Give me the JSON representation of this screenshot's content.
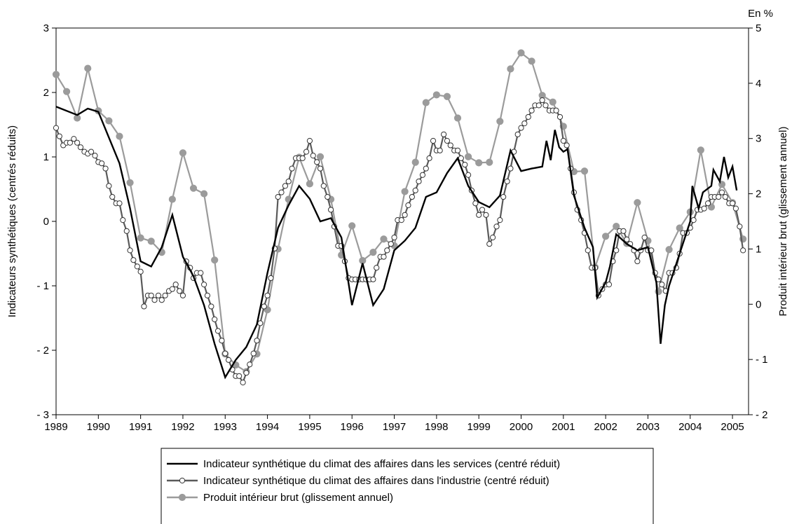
{
  "chart_data": {
    "type": "line",
    "unit_label": "En %",
    "y_label": "Indicateurs synthétiques (centrés réduits)",
    "y2_label": "Produit intérieur brut (glissement annuel)",
    "xlim": [
      1989,
      2005.38
    ],
    "xticks": [
      1989,
      1990,
      1991,
      1992,
      1993,
      1994,
      1995,
      1996,
      1997,
      1998,
      1999,
      2000,
      2001,
      2002,
      2003,
      2004,
      2005
    ],
    "ylim": [
      -3,
      3
    ],
    "yticks": [
      {
        "value": -3,
        "label": "- 3"
      },
      {
        "value": -2,
        "label": "- 2"
      },
      {
        "value": -1,
        "label": "- 1"
      },
      0,
      1,
      2,
      3
    ],
    "y2lim": [
      -2,
      5
    ],
    "y2ticks": [
      {
        "value": -2,
        "label": "- 2"
      },
      {
        "value": -1,
        "label": "- 1"
      },
      0,
      1,
      2,
      3,
      4,
      5
    ],
    "legend": "bottom",
    "series": [
      {
        "name": "Indicateur synthétique du climat des affaires dans les services (centré réduit)",
        "color": "#000000",
        "marker": "none",
        "x": [
          1989,
          1989.5,
          1989.75,
          1990,
          1990.25,
          1990.5,
          1990.75,
          1991,
          1991.25,
          1991.5,
          1991.75,
          1992,
          1992.25,
          1992.5,
          1992.75,
          1993,
          1993.25,
          1993.5,
          1993.75,
          1994,
          1994.25,
          1994.5,
          1994.75,
          1995,
          1995.25,
          1995.5,
          1995.75,
          1996,
          1996.25,
          1996.5,
          1996.75,
          1997,
          1997.25,
          1997.5,
          1997.75,
          1998,
          1998.25,
          1998.5,
          1998.75,
          1999,
          1999.25,
          1999.5,
          1999.75,
          2000,
          2000.25,
          2000.5,
          2000.6,
          2000.7,
          2000.8,
          2000.9,
          2001,
          2001.1,
          2001.25,
          2001.5,
          2001.7,
          2001.8,
          2002,
          2002.1,
          2002.25,
          2002.5,
          2002.75,
          2003,
          2003.2,
          2003.3,
          2003.4,
          2003.5,
          2003.75,
          2004,
          2004.05,
          2004.2,
          2004.3,
          2004.5,
          2004.55,
          2004.7,
          2004.8,
          2004.9,
          2005,
          2005.1
        ],
        "values": [
          1.78,
          1.65,
          1.75,
          1.7,
          1.3,
          0.9,
          0.2,
          -0.62,
          -0.7,
          -0.4,
          0.1,
          -0.55,
          -0.85,
          -1.3,
          -1.9,
          -2.42,
          -2.15,
          -1.95,
          -1.6,
          -0.8,
          -0.1,
          0.25,
          0.55,
          0.35,
          0,
          0.05,
          -0.25,
          -1.3,
          -0.65,
          -1.3,
          -1.05,
          -0.45,
          -0.3,
          -0.1,
          0.38,
          0.45,
          0.75,
          0.98,
          0.55,
          0.3,
          0.22,
          0.4,
          1.1,
          0.78,
          0.82,
          0.85,
          1.25,
          0.95,
          1.42,
          1.15,
          1.08,
          1.12,
          0.4,
          -0.1,
          -0.4,
          -1.18,
          -0.95,
          -0.7,
          -0.2,
          -0.35,
          -0.45,
          -0.4,
          -0.95,
          -1.9,
          -1.3,
          -1,
          -0.5,
          0,
          0.55,
          0.2,
          0.45,
          0.55,
          0.8,
          0.62,
          1,
          0.68,
          0.85,
          0.48
        ]
      },
      {
        "name": "Indicateur synthétique du climat des affaires dans l'industrie (centré réduit)",
        "color": "#5a5a5a",
        "marker": "open-circle",
        "x": [
          1989,
          1989.08,
          1989.17,
          1989.25,
          1989.33,
          1989.42,
          1989.5,
          1989.58,
          1989.67,
          1989.75,
          1989.83,
          1989.92,
          1990,
          1990.08,
          1990.17,
          1990.25,
          1990.33,
          1990.42,
          1990.5,
          1990.58,
          1990.67,
          1990.75,
          1990.83,
          1990.92,
          1991,
          1991.08,
          1991.17,
          1991.25,
          1991.33,
          1991.42,
          1991.5,
          1991.58,
          1991.67,
          1991.75,
          1991.83,
          1991.92,
          1992,
          1992.08,
          1992.17,
          1992.25,
          1992.33,
          1992.42,
          1992.5,
          1992.58,
          1992.67,
          1992.75,
          1992.83,
          1992.92,
          1993,
          1993.08,
          1993.17,
          1993.25,
          1993.33,
          1993.42,
          1993.5,
          1993.58,
          1993.67,
          1993.75,
          1993.83,
          1993.92,
          1994,
          1994.08,
          1994.17,
          1994.25,
          1994.33,
          1994.42,
          1994.5,
          1994.58,
          1994.67,
          1994.75,
          1994.83,
          1994.92,
          1995,
          1995.08,
          1995.17,
          1995.25,
          1995.33,
          1995.42,
          1995.5,
          1995.58,
          1995.67,
          1995.75,
          1995.83,
          1995.92,
          1996,
          1996.08,
          1996.17,
          1996.25,
          1996.33,
          1996.42,
          1996.5,
          1996.58,
          1996.67,
          1996.75,
          1996.83,
          1996.92,
          1997,
          1997.08,
          1997.17,
          1997.25,
          1997.33,
          1997.42,
          1997.5,
          1997.58,
          1997.67,
          1997.75,
          1997.83,
          1997.92,
          1998,
          1998.08,
          1998.17,
          1998.25,
          1998.33,
          1998.42,
          1998.5,
          1998.58,
          1998.67,
          1998.75,
          1998.83,
          1998.92,
          1999,
          1999.08,
          1999.17,
          1999.25,
          1999.33,
          1999.42,
          1999.5,
          1999.58,
          1999.67,
          1999.75,
          1999.83,
          1999.92,
          2000,
          2000.08,
          2000.17,
          2000.25,
          2000.33,
          2000.42,
          2000.5,
          2000.58,
          2000.67,
          2000.75,
          2000.83,
          2000.92,
          2001,
          2001.08,
          2001.17,
          2001.25,
          2001.33,
          2001.42,
          2001.5,
          2001.58,
          2001.67,
          2001.75,
          2001.83,
          2001.92,
          2002,
          2002.08,
          2002.17,
          2002.25,
          2002.33,
          2002.42,
          2002.5,
          2002.58,
          2002.67,
          2002.75,
          2002.83,
          2002.92,
          2003,
          2003.08,
          2003.17,
          2003.25,
          2003.33,
          2003.42,
          2003.5,
          2003.58,
          2003.67,
          2003.75,
          2003.83,
          2003.92,
          2004,
          2004.08,
          2004.17,
          2004.25,
          2004.33,
          2004.42,
          2004.5,
          2004.58,
          2004.67,
          2004.75,
          2004.83,
          2004.92,
          2005,
          2005.08,
          2005.17,
          2005.25
        ],
        "values": [
          1.45,
          1.32,
          1.18,
          1.22,
          1.22,
          1.28,
          1.22,
          1.15,
          1.08,
          1.05,
          1.08,
          1.02,
          0.92,
          0.9,
          0.82,
          0.55,
          0.38,
          0.28,
          0.28,
          0.02,
          -0.15,
          -0.45,
          -0.6,
          -0.7,
          -0.78,
          -1.32,
          -1.15,
          -1.15,
          -1.22,
          -1.15,
          -1.22,
          -1.15,
          -1.08,
          -1.05,
          -0.98,
          -1.08,
          -1.15,
          -0.62,
          -0.72,
          -0.88,
          -0.8,
          -0.8,
          -0.98,
          -1.15,
          -1.32,
          -1.52,
          -1.7,
          -1.85,
          -2.05,
          -2.15,
          -2.3,
          -2.4,
          -2.4,
          -2.5,
          -2.35,
          -2.22,
          -2.05,
          -1.85,
          -1.58,
          -1.32,
          -1.15,
          -0.88,
          -0.42,
          0.38,
          0.45,
          0.55,
          0.62,
          0.82,
          0.98,
          0.98,
          0.98,
          1.08,
          1.25,
          1.02,
          0.92,
          0.82,
          0.55,
          0.38,
          0.18,
          -0.08,
          -0.38,
          -0.38,
          -0.62,
          -0.88,
          -0.9,
          -0.9,
          -0.9,
          -0.9,
          -0.9,
          -0.9,
          -0.9,
          -0.72,
          -0.55,
          -0.55,
          -0.45,
          -0.35,
          -0.25,
          0.02,
          0.02,
          0.1,
          0.25,
          0.38,
          0.48,
          0.62,
          0.72,
          0.82,
          0.98,
          1.25,
          1.1,
          1.1,
          1.35,
          1.25,
          1.18,
          1.1,
          1.1,
          0.98,
          0.88,
          0.72,
          0.48,
          0.28,
          0.1,
          0.18,
          0.1,
          -0.35,
          -0.25,
          -0.08,
          0.02,
          0.38,
          0.62,
          0.82,
          1.08,
          1.35,
          1.45,
          1.52,
          1.62,
          1.72,
          1.8,
          1.8,
          1.88,
          1.8,
          1.72,
          1.72,
          1.72,
          1.62,
          1.25,
          1.18,
          0.82,
          0.45,
          0.18,
          0.02,
          -0.18,
          -0.45,
          -0.72,
          -0.72,
          -1.15,
          -1.05,
          -0.98,
          -0.98,
          -0.62,
          -0.45,
          -0.15,
          -0.15,
          -0.28,
          -0.35,
          -0.45,
          -0.62,
          -0.45,
          -0.25,
          -0.45,
          -0.45,
          -0.8,
          -0.9,
          -0.98,
          -1.08,
          -0.8,
          -0.8,
          -0.72,
          -0.5,
          -0.18,
          -0.18,
          -0.1,
          0.02,
          0.18,
          0.18,
          0.2,
          0.28,
          0.38,
          0.38,
          0.38,
          0.45,
          0.38,
          0.28,
          0.28,
          0.2,
          -0.08,
          -0.45
        ]
      },
      {
        "name": "Produit intérieur brut (glissement annuel)",
        "color": "#9b9b9b",
        "marker": "filled-circle",
        "axis": "y2",
        "x": [
          1989,
          1989.25,
          1989.5,
          1989.75,
          1990,
          1990.25,
          1990.5,
          1990.75,
          1991,
          1991.25,
          1991.5,
          1991.75,
          1992,
          1992.25,
          1992.5,
          1992.75,
          1993,
          1993.25,
          1993.5,
          1993.75,
          1994,
          1994.25,
          1994.5,
          1994.75,
          1995,
          1995.25,
          1995.5,
          1995.75,
          1996,
          1996.25,
          1996.5,
          1996.75,
          1997,
          1997.25,
          1997.5,
          1997.75,
          1998,
          1998.25,
          1998.5,
          1998.75,
          1999,
          1999.25,
          1999.5,
          1999.75,
          2000,
          2000.25,
          2000.5,
          2000.75,
          2001,
          2001.25,
          2001.5,
          2001.75,
          2002,
          2002.25,
          2002.5,
          2002.75,
          2003,
          2003.25,
          2003.5,
          2003.75,
          2004,
          2004.25,
          2004.5,
          2004.75,
          2005,
          2005.25
        ],
        "values": [
          4.16,
          3.85,
          3.37,
          4.27,
          3.5,
          3.32,
          3.04,
          2.2,
          1.2,
          1.14,
          0.94,
          1.9,
          2.74,
          2.1,
          2,
          0.8,
          -0.9,
          -1.1,
          -1.22,
          -0.9,
          -0.1,
          1,
          1.9,
          2.66,
          2.18,
          2.67,
          1.9,
          0.89,
          1.42,
          0.79,
          0.94,
          1.18,
          1.06,
          2.04,
          2.57,
          3.65,
          3.79,
          3.76,
          3.37,
          2.67,
          2.56,
          2.57,
          3.31,
          4.26,
          4.55,
          4.4,
          3.78,
          3.66,
          3.22,
          2.4,
          2.41,
          0.67,
          1.23,
          1.41,
          1.1,
          1.84,
          1.15,
          0.23,
          0.99,
          1.38,
          1.67,
          2.79,
          1.76,
          2.17,
          1.84,
          1.18
        ]
      }
    ]
  }
}
